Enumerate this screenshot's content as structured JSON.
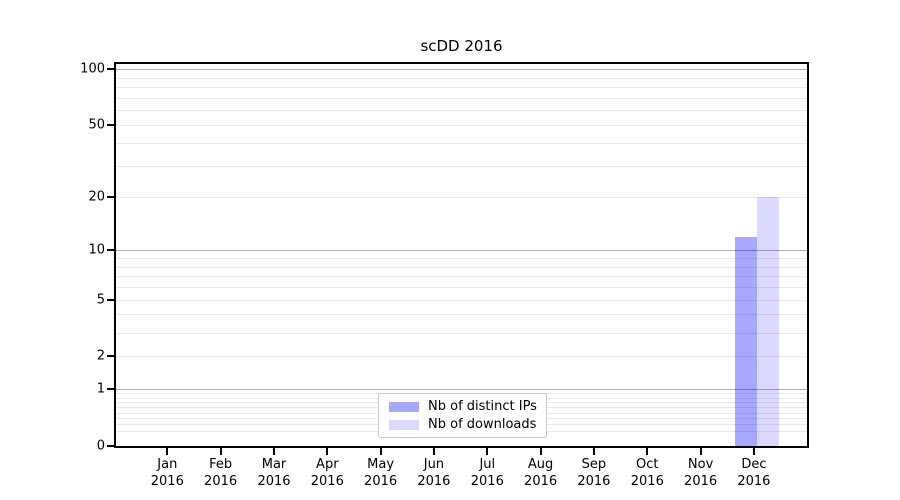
{
  "chart": {
    "title": "scDD 2016"
  },
  "chart_data": {
    "type": "bar",
    "title": "scDD 2016",
    "categories": [
      "Jan",
      "Feb",
      "Mar",
      "Apr",
      "May",
      "Jun",
      "Jul",
      "Aug",
      "Sep",
      "Oct",
      "Nov",
      "Dec"
    ],
    "year_label": "2016",
    "series": [
      {
        "name": "Nb of distinct IPs",
        "color": "rgba(0,0,255,0.345)",
        "values": [
          0,
          0,
          0,
          0,
          0,
          0,
          0,
          0,
          0,
          0,
          0,
          12
        ]
      },
      {
        "name": "Nb of downloads",
        "color": "rgba(0,0,255,0.145)",
        "values": [
          0,
          0,
          0,
          0,
          0,
          0,
          0,
          0,
          0,
          0,
          0,
          20
        ]
      }
    ],
    "y_axis": {
      "scale": "log1p",
      "ticks": [
        0,
        1,
        2,
        5,
        10,
        20,
        50,
        100
      ],
      "major_gridlines": [
        1,
        10,
        100
      ],
      "minor_gridlines": [
        0.2,
        0.3,
        0.4,
        0.5,
        0.6,
        0.7,
        0.8,
        0.9,
        2,
        3,
        4,
        5,
        6,
        7,
        8,
        9,
        20,
        30,
        40,
        50,
        60,
        70,
        80,
        90
      ],
      "ylim": [
        0,
        110
      ]
    },
    "xlabel": "",
    "ylabel": "",
    "grid": "horizontal",
    "legend_position": "lower center inside"
  }
}
